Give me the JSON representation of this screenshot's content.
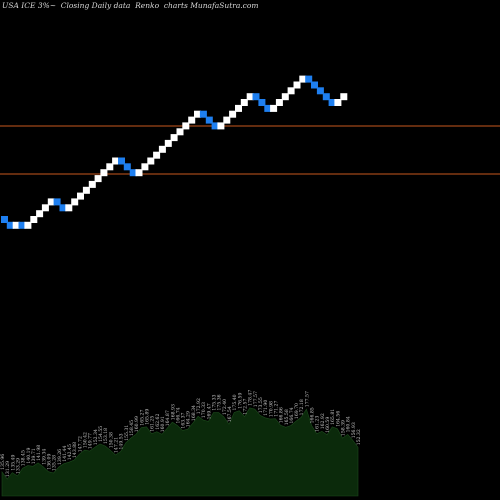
{
  "header": {
    "title": "USA ICE 3%~  Closing Daily data  Renko  charts MunafaSutra.com"
  },
  "colors": {
    "background": "#000000",
    "up_brick": "#ffffff",
    "down_brick": "#1e7ff0",
    "level_line": "#c8581e",
    "volume_fill": "#0b2a0b",
    "label_text": "#c8c8c8"
  },
  "chart_data": {
    "type": "renko",
    "brick_directions": [
      "down",
      "down",
      "up",
      "down",
      "up",
      "up",
      "up",
      "up",
      "up",
      "down",
      "down",
      "up",
      "up",
      "up",
      "up",
      "up",
      "up",
      "up",
      "up",
      "up",
      "down",
      "down",
      "down",
      "up",
      "up",
      "up",
      "up",
      "up",
      "up",
      "up",
      "up",
      "up",
      "up",
      "up",
      "down",
      "down",
      "down",
      "up",
      "up",
      "up",
      "up",
      "up",
      "up",
      "down",
      "down",
      "down",
      "up",
      "up",
      "up",
      "up",
      "up",
      "up",
      "down",
      "down",
      "down",
      "down",
      "down",
      "up",
      "up"
    ],
    "reference_levels": [
      "upper",
      "lower"
    ],
    "volume_labels": [
      "135.96",
      "131.29",
      "135.49",
      "133.29",
      "138.45",
      "140.19",
      "139.71",
      "141.98",
      "139.34",
      "136.09",
      "135.28",
      "139.26",
      "141.44",
      "142.45",
      "143.88",
      "147.72",
      "150.42",
      "149.77",
      "152.34",
      "154.55",
      "153.18",
      "150.38",
      "147.21",
      "149.53",
      "155.31",
      "158.45",
      "160.99",
      "165.27",
      "165.89",
      "161.25",
      "162.62",
      "160.91",
      "164.87",
      "168.93",
      "166.74",
      "163.37",
      "164.29",
      "168.34",
      "172.92",
      "170.33",
      "169.47",
      "175.33",
      "175.36",
      "172.40",
      "167.54",
      "175.40",
      "176.59",
      "172.57",
      "178.47",
      "177.57",
      "173.55",
      "171.90",
      "170.98",
      "171.27",
      "166.86",
      "165.58",
      "166.74",
      "169.70",
      "172.18",
      "177.57",
      "166.85",
      "161.23",
      "162.92",
      "160.59",
      "165.81",
      "164.56",
      "158.39",
      "160.84",
      "156.93",
      "152.32"
    ]
  }
}
